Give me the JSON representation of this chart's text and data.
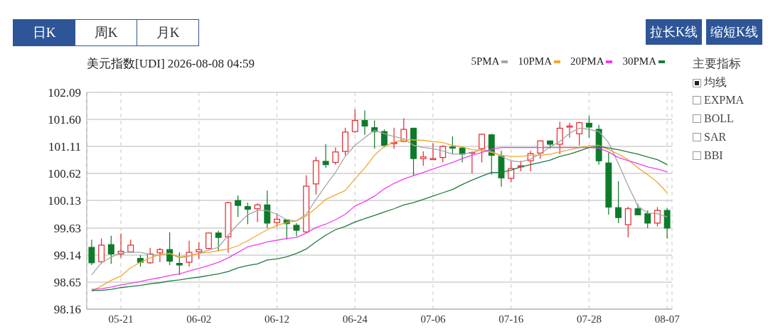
{
  "chart_data": {
    "type": "candlestick",
    "title": "美元指数[UDI] 2026-08-08 04:59",
    "annotations": [
      "日K",
      "周K",
      "月K",
      "拉长K线",
      "缩短K线",
      "主要指标",
      "均线",
      "EXPMA",
      "BOLL",
      "SAR",
      "BBI"
    ],
    "categories": [
      null,
      null,
      null,
      "05-21",
      null,
      null,
      null,
      null,
      null,
      null,
      null,
      "06-02",
      null,
      null,
      null,
      null,
      null,
      null,
      null,
      "06-12",
      null,
      null,
      null,
      null,
      null,
      null,
      null,
      "06-24",
      null,
      null,
      null,
      null,
      null,
      null,
      null,
      "07-06",
      null,
      null,
      null,
      null,
      null,
      null,
      null,
      "07-16",
      null,
      null,
      null,
      null,
      null,
      null,
      null,
      "07-28",
      null,
      null,
      null,
      null,
      null,
      null,
      null,
      "08-07"
    ],
    "ylim": [
      98.16,
      102.09
    ],
    "yticks": [
      98.16,
      98.65,
      99.14,
      99.63,
      100.13,
      100.62,
      101.11,
      {
        "value": 101.6,
        "label": "101.60"
      },
      102.09
    ],
    "grid": true,
    "legend": "top right",
    "series": [
      {
        "ohlc": [
          [
            99.28,
            99.42,
            98.96,
            99.0
          ],
          [
            99.02,
            99.44,
            98.98,
            99.32
          ],
          [
            99.33,
            99.49,
            98.98,
            99.16
          ],
          [
            99.16,
            99.53,
            99.09,
            99.21
          ],
          [
            99.2,
            99.42,
            99.2,
            99.32
          ],
          [
            99.08,
            99.14,
            98.93,
            99.01
          ],
          [
            99.0,
            99.27,
            98.98,
            99.16
          ],
          [
            99.18,
            99.27,
            99.01,
            99.24
          ],
          [
            99.24,
            99.55,
            98.96,
            99.03
          ],
          [
            98.99,
            99.19,
            98.78,
            98.96
          ],
          [
            99.01,
            99.4,
            98.93,
            99.19
          ],
          [
            99.2,
            99.37,
            99.07,
            99.24
          ],
          [
            99.26,
            99.55,
            99.25,
            99.54
          ],
          [
            99.54,
            99.58,
            99.21,
            99.46
          ],
          [
            99.47,
            100.11,
            99.18,
            100.09
          ],
          [
            100.13,
            100.22,
            99.83,
            100.04
          ],
          [
            100.02,
            100.09,
            99.7,
            99.97
          ],
          [
            99.98,
            100.08,
            99.74,
            100.05
          ],
          [
            100.05,
            100.31,
            99.63,
            99.72
          ],
          [
            99.73,
            99.9,
            99.65,
            99.79
          ],
          [
            99.78,
            99.78,
            99.42,
            99.71
          ],
          [
            99.68,
            99.72,
            99.48,
            99.59
          ],
          [
            99.56,
            100.59,
            99.54,
            100.39
          ],
          [
            100.43,
            100.92,
            100.24,
            100.85
          ],
          [
            100.84,
            101.15,
            100.72,
            100.78
          ],
          [
            100.82,
            101.09,
            100.78,
            101.01
          ],
          [
            101.02,
            101.45,
            100.95,
            101.37
          ],
          [
            101.38,
            101.78,
            101.36,
            101.58
          ],
          [
            101.58,
            101.76,
            101.32,
            101.48
          ],
          [
            101.45,
            101.58,
            101.07,
            101.38
          ],
          [
            101.38,
            101.42,
            101.09,
            101.13
          ],
          [
            101.16,
            101.45,
            101.07,
            101.18
          ],
          [
            101.2,
            101.62,
            101.19,
            101.42
          ],
          [
            101.44,
            101.45,
            100.58,
            100.89
          ],
          [
            100.89,
            101.02,
            100.76,
            100.92
          ],
          [
            100.87,
            101.17,
            100.87,
            100.89
          ],
          [
            100.91,
            101.13,
            100.82,
            101.11
          ],
          [
            101.1,
            101.29,
            100.98,
            101.08
          ],
          [
            101.08,
            101.11,
            100.82,
            100.97
          ],
          [
            100.99,
            101.02,
            100.62,
            101.0
          ],
          [
            101.07,
            101.34,
            100.82,
            101.33
          ],
          [
            101.32,
            101.34,
            100.6,
            100.95
          ],
          [
            100.93,
            101.03,
            100.38,
            100.54
          ],
          [
            100.53,
            100.84,
            100.46,
            100.71
          ],
          [
            100.74,
            100.85,
            100.66,
            100.76
          ],
          [
            100.85,
            101.03,
            100.66,
            100.98
          ],
          [
            100.99,
            101.22,
            100.89,
            101.21
          ],
          [
            101.21,
            101.21,
            101.07,
            101.15
          ],
          [
            101.15,
            101.56,
            100.97,
            101.44
          ],
          [
            101.46,
            101.54,
            101.27,
            101.48
          ],
          [
            101.34,
            101.56,
            101.13,
            101.54
          ],
          [
            101.53,
            101.66,
            101.27,
            101.46
          ],
          [
            101.42,
            101.5,
            100.78,
            100.85
          ],
          [
            100.81,
            101.0,
            99.87,
            100.01
          ],
          [
            100.0,
            100.48,
            99.72,
            99.82
          ],
          [
            99.69,
            100.02,
            99.46,
            99.98
          ],
          [
            99.98,
            100.07,
            99.87,
            99.87
          ],
          [
            99.89,
            99.95,
            99.63,
            99.72
          ],
          [
            99.72,
            100.01,
            99.66,
            99.95
          ],
          [
            99.95,
            99.99,
            99.44,
            99.63
          ]
        ],
        "colors": [
          "#0d7b2a",
          "#e4262c",
          "#0d7b2a",
          "#e4262c",
          "#e4262c",
          "#0d7b2a",
          "#e4262c",
          "#e4262c",
          "#0d7b2a",
          "#0d7b2a",
          "#e4262c",
          "#e4262c",
          "#e4262c",
          "#0d7b2a",
          "#e4262c",
          "#0d7b2a",
          "#0d7b2a",
          "#e4262c",
          "#0d7b2a",
          "#e4262c",
          "#0d7b2a",
          "#0d7b2a",
          "#e4262c",
          "#e4262c",
          "#0d7b2a",
          "#e4262c",
          "#e4262c",
          "#e4262c",
          "#0d7b2a",
          "#0d7b2a",
          "#0d7b2a",
          "#e4262c",
          "#e4262c",
          "#0d7b2a",
          "#e4262c",
          "#e4262c",
          "#e4262c",
          "#0d7b2a",
          "#0d7b2a",
          "#e4262c",
          "#e4262c",
          "#0d7b2a",
          "#0d7b2a",
          "#e4262c",
          "#e4262c",
          "#e4262c",
          "#e4262c",
          "#0d7b2a",
          "#e4262c",
          "#e4262c",
          "#e4262c",
          "#0d7b2a",
          "#0d7b2a",
          "#0d7b2a",
          "#0d7b2a",
          "#e4262c",
          "#0d7b2a",
          "#0d7b2a",
          "#e4262c",
          "#0d7b2a"
        ]
      },
      {
        "type": "line",
        "name": "5PMA",
        "color": "#a6a6a6",
        "values": [
          98.78,
          99.0,
          99.1,
          99.19,
          99.19,
          99.19,
          99.15,
          99.14,
          99.17,
          99.09,
          99.12,
          99.17,
          99.23,
          99.28,
          99.5,
          99.7,
          99.87,
          99.95,
          99.95,
          99.88,
          99.78,
          99.76,
          99.88,
          100.15,
          100.4,
          100.64,
          100.93,
          101.13,
          101.27,
          101.4,
          101.34,
          101.29,
          101.25,
          101.13,
          101.09,
          101.07,
          101.03,
          100.97,
          100.97,
          101.0,
          101.05,
          101.02,
          100.93,
          100.85,
          100.83,
          100.88,
          100.98,
          101.1,
          101.2,
          101.35,
          101.44,
          101.42,
          101.38,
          101.18,
          100.8,
          100.4,
          100.03,
          99.9,
          99.89,
          99.83
        ]
      },
      {
        "type": "line",
        "name": "10PMA",
        "color": "#f0a830",
        "values": [
          98.48,
          98.58,
          98.68,
          98.76,
          98.91,
          99.01,
          99.09,
          99.15,
          99.17,
          99.11,
          99.13,
          99.17,
          99.19,
          99.22,
          99.25,
          99.31,
          99.4,
          99.5,
          99.6,
          99.68,
          99.73,
          99.76,
          99.85,
          99.99,
          100.15,
          100.23,
          100.31,
          100.52,
          100.72,
          100.95,
          101.11,
          101.19,
          101.23,
          101.23,
          101.22,
          101.2,
          101.18,
          101.13,
          101.1,
          101.05,
          101.04,
          101.0,
          100.95,
          100.93,
          100.93,
          100.95,
          100.95,
          100.97,
          101.01,
          101.05,
          101.09,
          101.12,
          101.13,
          101.05,
          100.97,
          100.87,
          100.72,
          100.6,
          100.46,
          100.27
        ]
      },
      {
        "type": "line",
        "name": "20PMA",
        "color": "#f23cf2",
        "values": [
          98.52,
          98.53,
          98.56,
          98.6,
          98.63,
          98.66,
          98.7,
          98.73,
          98.77,
          98.8,
          98.85,
          98.9,
          98.95,
          99.01,
          99.09,
          99.19,
          99.29,
          99.33,
          99.38,
          99.41,
          99.44,
          99.46,
          99.54,
          99.64,
          99.7,
          99.78,
          99.88,
          100.03,
          100.11,
          100.21,
          100.34,
          100.44,
          100.52,
          100.58,
          100.64,
          100.7,
          100.76,
          100.82,
          100.89,
          100.95,
          101.0,
          101.06,
          101.09,
          101.09,
          101.09,
          101.09,
          101.09,
          101.09,
          101.09,
          101.09,
          101.09,
          101.09,
          101.08,
          101.01,
          100.91,
          100.85,
          100.8,
          100.74,
          100.7,
          100.65
        ]
      },
      {
        "type": "line",
        "name": "30PMA",
        "color": "#1e7a3e",
        "values": [
          98.5,
          98.5,
          98.52,
          98.55,
          98.57,
          98.59,
          98.62,
          98.64,
          98.67,
          98.69,
          98.72,
          98.74,
          98.77,
          98.8,
          98.84,
          98.91,
          98.95,
          98.98,
          99.05,
          99.07,
          99.11,
          99.17,
          99.25,
          99.38,
          99.5,
          99.6,
          99.66,
          99.74,
          99.8,
          99.86,
          99.92,
          99.98,
          100.05,
          100.09,
          100.15,
          100.21,
          100.27,
          100.33,
          100.42,
          100.5,
          100.57,
          100.64,
          100.64,
          100.68,
          100.74,
          100.78,
          100.82,
          100.86,
          100.93,
          100.97,
          101.03,
          101.09,
          101.11,
          101.08,
          101.05,
          101.01,
          100.97,
          100.92,
          100.87,
          100.78
        ]
      }
    ]
  }
}
